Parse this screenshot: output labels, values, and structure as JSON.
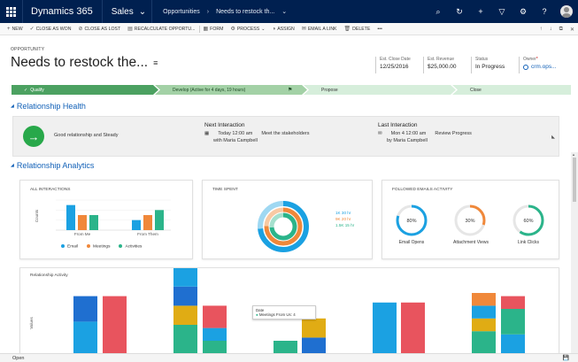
{
  "topnav": {
    "brand": "Dynamics 365",
    "app": "Sales",
    "breadcrumbs": [
      "Opportunities",
      "Needs to restock th..."
    ]
  },
  "commands": [
    {
      "icon": "+",
      "label": "NEW"
    },
    {
      "icon": "✓",
      "label": "CLOSE AS WON"
    },
    {
      "icon": "⊘",
      "label": "CLOSE AS LOST"
    },
    {
      "icon": "▤",
      "label": "RECALCULATE OPPORTU..."
    },
    {
      "icon": "▦",
      "label": "FORM"
    },
    {
      "icon": "⚙",
      "label": "PROCESS"
    },
    {
      "icon": "◑",
      "label": "ASSIGN"
    },
    {
      "icon": "✉",
      "label": "EMAIL A LINK"
    },
    {
      "icon": "🗑",
      "label": "DELETE"
    }
  ],
  "header": {
    "entity": "OPPORTUNITY",
    "title": "Needs to restock the...",
    "fields": [
      {
        "label": "Est. Close Date",
        "value": "12/25/2016"
      },
      {
        "label": "Est. Revenue",
        "value": "$25,000.00"
      },
      {
        "label": "Status",
        "value": "In Progress"
      },
      {
        "label": "Owner",
        "value": "crm.ops..."
      }
    ]
  },
  "process": {
    "stages": [
      "Qualify",
      "Develop (Active for 4 days, 19 hours)",
      "Propose",
      "Close"
    ]
  },
  "health": {
    "section_title": "Relationship Health",
    "status_text": "Good relationship and Steady",
    "next": {
      "title": "Next Interaction",
      "when": "Today 12:00 am",
      "subject": "Meet the stakeholders",
      "with": "with Maria Campbell"
    },
    "last": {
      "title": "Last Interaction",
      "when": "Mon 4 12:00 am",
      "subject": "Review Progress",
      "with": "by Maria Campbell"
    }
  },
  "analytics": {
    "section_title": "Relationship Analytics",
    "all_interactions": {
      "title": "ALL INTERACTIONS",
      "ylabel": "Counts",
      "categories": [
        "From Me",
        "From Them"
      ],
      "legend": [
        "Email",
        "Meetings",
        "Activities"
      ]
    },
    "time_spent": {
      "title": "TIME SPENT",
      "legend": [
        "1K 30 hr",
        "9K 20 hr",
        "1.5K 15 hr"
      ]
    },
    "followed": {
      "title": "FOLLOWED EMAILS ACTIVITY",
      "items": [
        {
          "pct": "80%",
          "label": "Email Opens",
          "value": 0.8
        },
        {
          "pct": "30%",
          "label": "Attachment Views",
          "value": 0.3
        },
        {
          "pct": "60%",
          "label": "Link Clicks",
          "value": 0.6
        }
      ]
    },
    "activity": {
      "title": "Relationship Activity",
      "ylabel": "Values",
      "tooltip_head": "Date",
      "tooltip_text": "Meetings From Us: 4"
    }
  },
  "colors": {
    "email": "#1ba1e2",
    "meetings": "#f0883a",
    "activities": "#2bb48a",
    "red": "#e8545e",
    "gold": "#e0ac14",
    "navy": "#002050",
    "green": "#4ca161"
  },
  "chart_data": [
    {
      "type": "bar",
      "title": "ALL INTERACTIONS",
      "ylabel": "Counts",
      "categories": [
        "From Me",
        "From Them"
      ],
      "series": [
        {
          "name": "Email",
          "values": [
            5,
            2
          ]
        },
        {
          "name": "Meetings",
          "values": [
            3,
            3
          ]
        },
        {
          "name": "Activities",
          "values": [
            3,
            4
          ]
        }
      ]
    },
    {
      "type": "bar",
      "title": "Relationship Activity",
      "ylabel": "Values",
      "stacked": true,
      "groups": 6,
      "bars": [
        [
          {
            "c": "email",
            "v": 0
          },
          {
            "c": "email",
            "v": 22
          },
          {
            "c": "blue",
            "v": 16
          }
        ],
        [
          {
            "c": "red",
            "v": 38
          }
        ],
        [
          {
            "c": "activities",
            "v": 20
          },
          {
            "c": "gold",
            "v": 12
          },
          {
            "c": "blue",
            "v": 12
          },
          {
            "c": "email",
            "v": 16
          }
        ],
        [
          {
            "c": "activities",
            "v": 10
          },
          {
            "c": "email",
            "v": 8
          },
          {
            "c": "red",
            "v": 14
          }
        ],
        [
          {
            "c": "activities",
            "v": 10
          }
        ],
        [
          {
            "c": "blue",
            "v": 12
          },
          {
            "c": "gold",
            "v": 12
          }
        ],
        [
          {
            "c": "email",
            "v": 34
          }
        ],
        [
          {
            "c": "red",
            "v": 34
          }
        ],
        [
          {
            "c": "activities",
            "v": 16
          },
          {
            "c": "gold",
            "v": 8
          },
          {
            "c": "email",
            "v": 8
          },
          {
            "c": "meetings",
            "v": 8
          }
        ],
        [
          {
            "c": "email",
            "v": 14
          },
          {
            "c": "activities",
            "v": 16
          },
          {
            "c": "red",
            "v": 8
          }
        ]
      ]
    }
  ]
}
